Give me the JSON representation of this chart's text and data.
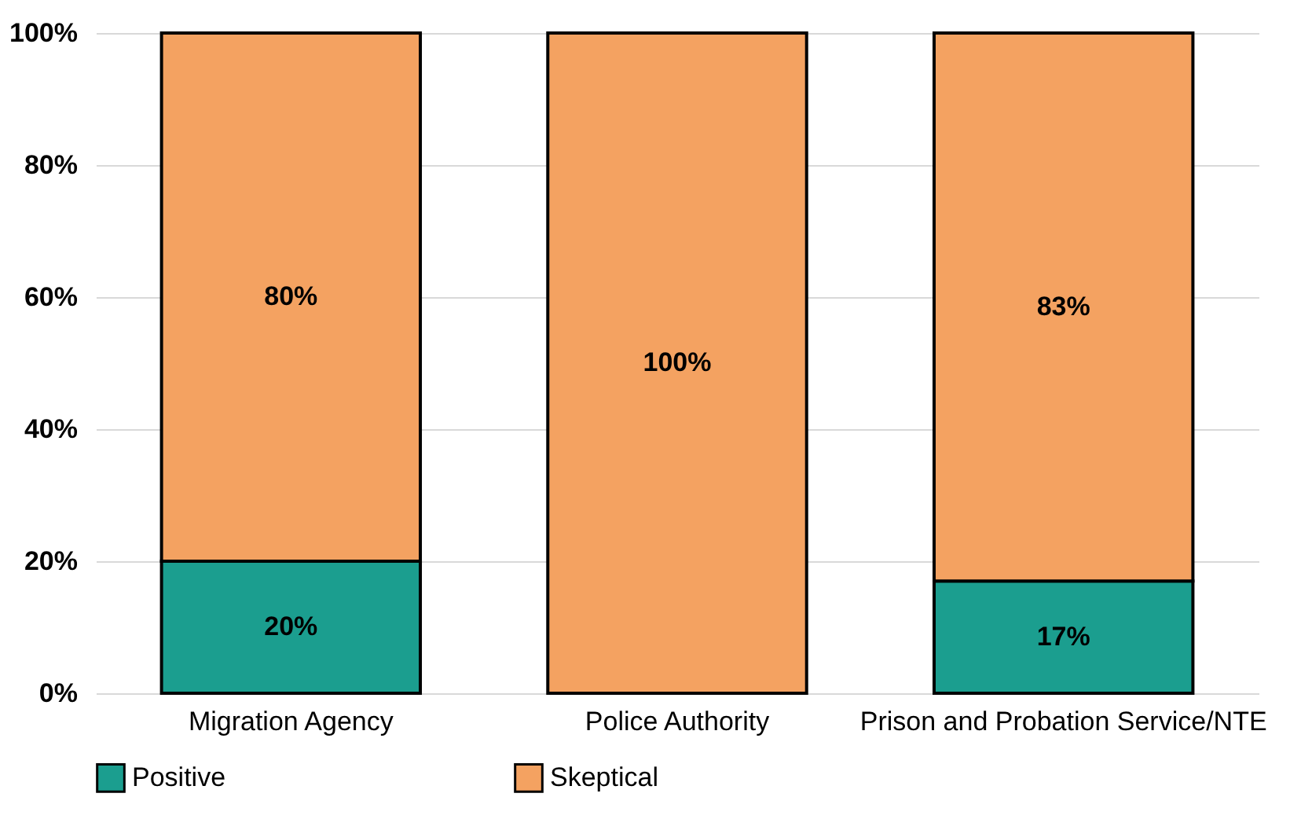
{
  "chart_data": {
    "type": "bar",
    "stacked": true,
    "categories": [
      "Migration Agency",
      "Police Authority",
      "Prison and Probation Service/NTE"
    ],
    "series": [
      {
        "name": "Positive",
        "color": "#1b9e8f",
        "values": [
          20,
          0,
          17
        ],
        "value_labels": [
          "20%",
          null,
          "17%"
        ]
      },
      {
        "name": "Skeptical",
        "color": "#f4a261",
        "values": [
          80,
          100,
          83
        ],
        "value_labels": [
          "80%",
          "100%",
          "83%"
        ]
      }
    ],
    "ylim": [
      0,
      100
    ],
    "yticks": [
      {
        "value": 0,
        "label": "0%"
      },
      {
        "value": 20,
        "label": "20%"
      },
      {
        "value": 40,
        "label": "40%"
      },
      {
        "value": 60,
        "label": "60%"
      },
      {
        "value": 80,
        "label": "80%"
      },
      {
        "value": 100,
        "label": "100%"
      }
    ],
    "grid": "y",
    "legend": "bottom"
  }
}
